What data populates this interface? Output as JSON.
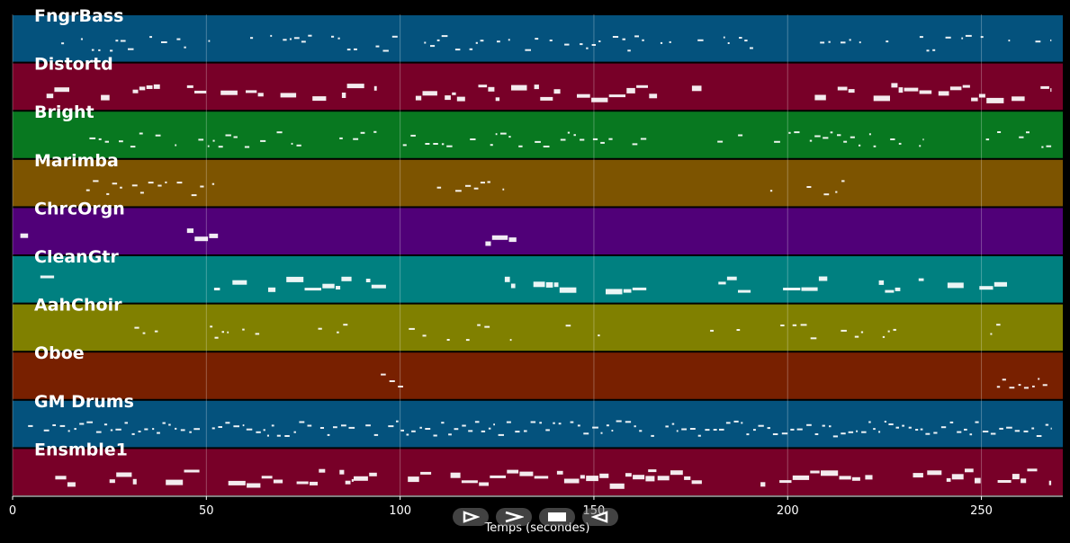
{
  "chart_data": {
    "type": "piano-roll",
    "xlabel": "Temps (secondes)",
    "xlim": [
      0,
      271
    ],
    "xticks": [
      0,
      50,
      100,
      150,
      200,
      250
    ],
    "grid": true,
    "tracks": [
      {
        "name": "FngrBass",
        "color": "#04527d",
        "segments": [
          [
            11,
            194
          ],
          [
            207,
            268
          ]
        ],
        "density": 0.55,
        "stroke": 1
      },
      {
        "name": "Distortd",
        "color": "#780028",
        "segments": [
          [
            4,
            25
          ],
          [
            31,
            38
          ],
          [
            45,
            94
          ],
          [
            104,
            178
          ],
          [
            192,
            194
          ],
          [
            207,
            268
          ]
        ],
        "density": 0.65,
        "stroke": 2
      },
      {
        "name": "Bright",
        "color": "#087820",
        "segments": [
          [
            18,
            96
          ],
          [
            97,
            164
          ],
          [
            180,
            235
          ],
          [
            248,
            268
          ]
        ],
        "density": 0.5,
        "stroke": 1
      },
      {
        "name": "Marimba",
        "color": "#7d5400",
        "segments": [
          [
            19,
            53
          ],
          [
            102,
            131
          ],
          [
            194,
            220
          ]
        ],
        "density": 0.45,
        "stroke": 1
      },
      {
        "name": "ChrcOrgn",
        "color": "#500078",
        "segments": [
          [
            2,
            4
          ],
          [
            45,
            53
          ],
          [
            122,
            130
          ]
        ],
        "density": 1.0,
        "stroke": 3
      },
      {
        "name": "CleanGtr",
        "color": "#008080",
        "segments": [
          [
            4,
            18
          ],
          [
            52,
            102
          ],
          [
            124,
            164
          ],
          [
            178,
            268
          ]
        ],
        "density": 0.55,
        "stroke": 2
      },
      {
        "name": "AahChoir",
        "color": "#808000",
        "segments": [
          [
            24,
            40
          ],
          [
            45,
            87
          ],
          [
            98,
            164
          ],
          [
            180,
            228
          ],
          [
            248,
            255
          ]
        ],
        "density": 0.35,
        "stroke": 1
      },
      {
        "name": "Oboe",
        "color": "#782000",
        "segments": [
          [
            95,
            101
          ],
          [
            254,
            267
          ]
        ],
        "density": 1.0,
        "stroke": 1
      },
      {
        "name": "GM Drums",
        "color": "#04527d",
        "segments": [
          [
            4,
            268
          ]
        ],
        "density": 0.95,
        "stroke": 1
      },
      {
        "name": "Ensmble1",
        "color": "#780028",
        "segments": [
          [
            11,
            18
          ],
          [
            25,
            32
          ],
          [
            38,
            88
          ],
          [
            88,
            94
          ],
          [
            102,
            108
          ],
          [
            113,
            168
          ],
          [
            164,
            178
          ],
          [
            193,
            220
          ],
          [
            220,
            225
          ],
          [
            230,
            235
          ],
          [
            236,
            241
          ],
          [
            241,
            268
          ]
        ],
        "density": 0.8,
        "stroke": 2
      }
    ]
  },
  "controls": {
    "play_icon": "play-icon",
    "forward_icon": "fast-forward-icon",
    "stop_icon": "stop-icon",
    "rewind_icon": "rewind-icon"
  }
}
